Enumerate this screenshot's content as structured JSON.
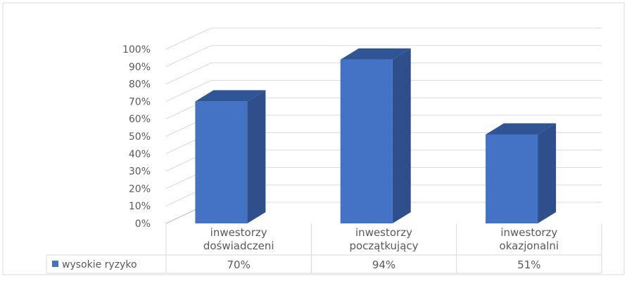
{
  "chart_data": {
    "type": "bar",
    "categories": [
      [
        "inwestorzy",
        "doświadczeni"
      ],
      [
        "inwestorzy",
        "początkujący"
      ],
      [
        "inwestorzy",
        "okazjonalni"
      ]
    ],
    "series": [
      {
        "name": "wysokie ryzyko",
        "values": [
          70,
          94,
          51
        ],
        "labels": [
          "70%",
          "94%",
          "51%"
        ]
      }
    ],
    "yticks": [
      "0%",
      "10%",
      "20%",
      "30%",
      "40%",
      "50%",
      "60%",
      "70%",
      "80%",
      "90%",
      "100%"
    ],
    "ylim": [
      0,
      100
    ],
    "grid": true,
    "legend": "data-table",
    "style": "3d-column",
    "colors": {
      "front": "#4472c4",
      "side": "#2e4f8c",
      "top": "#2f5597"
    }
  }
}
